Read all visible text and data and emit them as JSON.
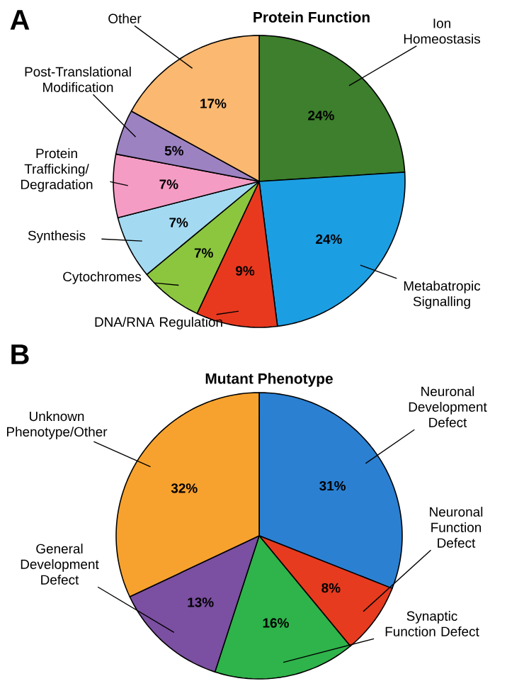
{
  "chart_data": [
    {
      "type": "pie",
      "title": "Protein Function",
      "annotations": [
        "A"
      ],
      "categories": [
        "Ion Homeostasis",
        "Metabatropic Signalling",
        "DNA/RNA Regulation",
        "Cytochromes",
        "Synthesis",
        "Protein Trafficking/Degradation",
        "Post-Translational Modification",
        "Other"
      ],
      "values": [
        24,
        24,
        9,
        7,
        7,
        7,
        5,
        17
      ],
      "value_labels": [
        "24%",
        "24%",
        "9%",
        "7%",
        "7%",
        "7%",
        "5%",
        "17%"
      ],
      "colors": [
        "#3d7f2c",
        "#1c9ee2",
        "#e8391f",
        "#8cc63f",
        "#a3daf2",
        "#f59cc4",
        "#9d82c2",
        "#fbb870"
      ]
    },
    {
      "type": "pie",
      "title": "Mutant Phenotype",
      "annotations": [
        "B"
      ],
      "categories": [
        "Neuronal Development Defect",
        "Neuronal Function Defect",
        "Synaptic Function Defect",
        "General Development Defect",
        "Unknown Phenotype/Other"
      ],
      "values": [
        31,
        8,
        16,
        13,
        32
      ],
      "value_labels": [
        "31%",
        "8%",
        "16%",
        "13%",
        "32%"
      ],
      "colors": [
        "#2b80d2",
        "#e63b1f",
        "#2fb34b",
        "#7b4fa1",
        "#f7a22e"
      ]
    }
  ]
}
